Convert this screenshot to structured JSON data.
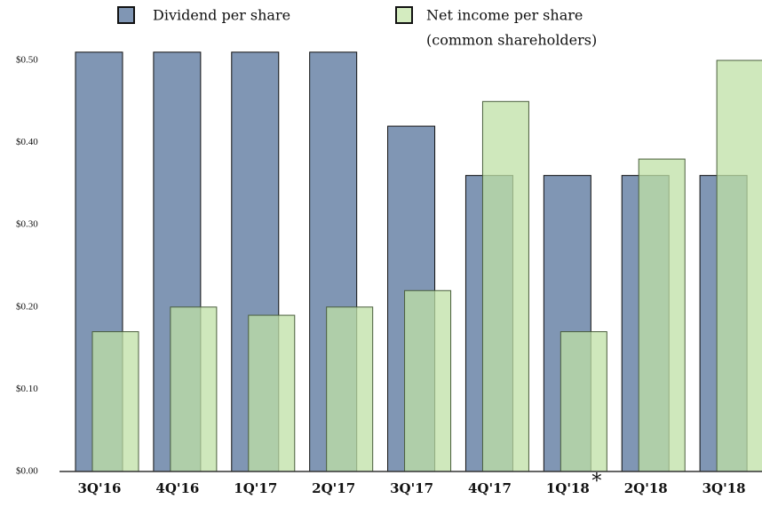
{
  "chart_data": {
    "type": "bar",
    "categories": [
      "3Q'16",
      "4Q'16",
      "1Q'17",
      "2Q'17",
      "3Q'17",
      "4Q'17",
      "1Q'18",
      "2Q'18",
      "3Q'18"
    ],
    "series": [
      {
        "name": "Dividend per share",
        "color": "#8096b4",
        "values": [
          0.51,
          0.51,
          0.51,
          0.51,
          0.42,
          0.36,
          0.36,
          0.36,
          0.36
        ]
      },
      {
        "name": "Net income per share",
        "name_note": "(common shareholders)",
        "color": "#bfe0a6",
        "values": [
          0.17,
          0.2,
          0.19,
          0.2,
          0.22,
          0.45,
          0.17,
          0.38,
          0.5
        ]
      }
    ],
    "annotation": {
      "category_index": 6,
      "text": "*"
    },
    "ylim": [
      0,
      0.5
    ],
    "yticks": [
      {
        "value": 0,
        "label": "$0.00"
      },
      {
        "value": 0.1,
        "label": "$0.10"
      },
      {
        "value": 0.2,
        "label": "$0.20"
      },
      {
        "value": 0.3,
        "label": "$0.30"
      },
      {
        "value": 0.4,
        "label": "$0.40"
      },
      {
        "value": 0.5,
        "label": "$0.50"
      }
    ],
    "grid": false
  }
}
